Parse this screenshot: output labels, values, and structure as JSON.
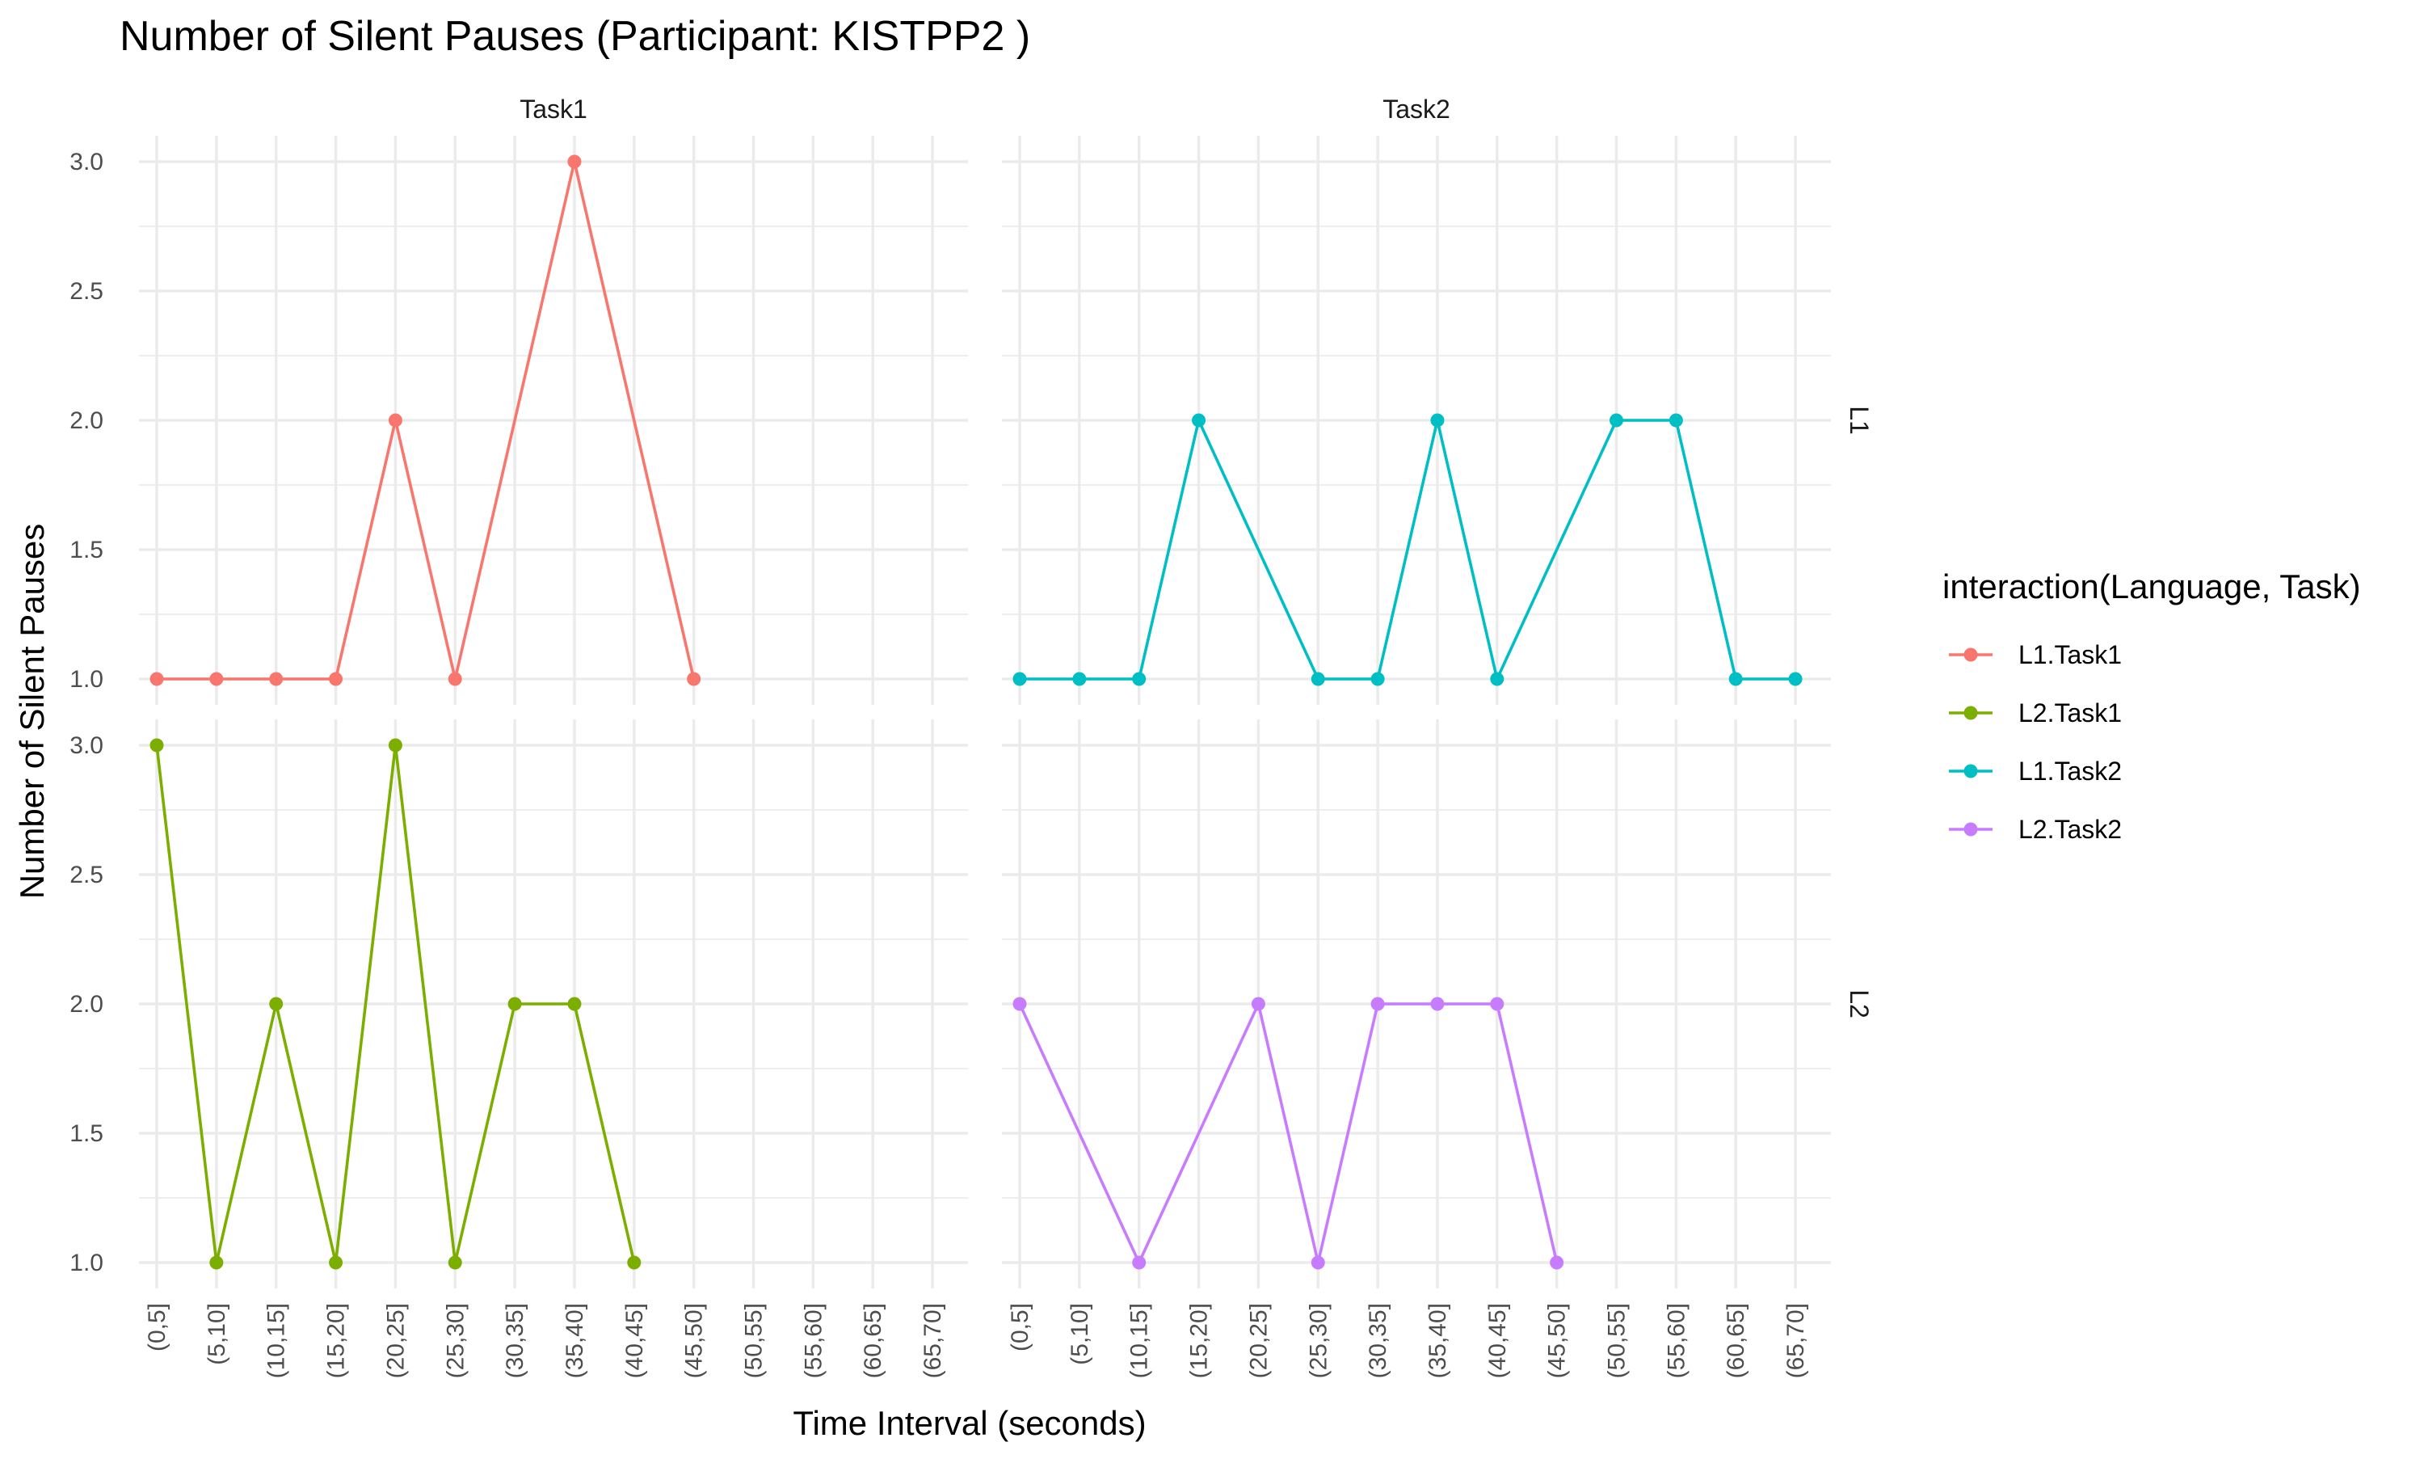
{
  "chart_data": {
    "type": "line",
    "title": "Number of Silent Pauses (Participant: KISTPP2 )",
    "xlabel": "Time Interval (seconds)",
    "ylabel": "Number of Silent Pauses",
    "categories": [
      "(0,5]",
      "(5,10]",
      "(10,15]",
      "(15,20]",
      "(20,25]",
      "(25,30]",
      "(30,35]",
      "(35,40]",
      "(40,45]",
      "(45,50]",
      "(50,55]",
      "(55,60]",
      "(60,65]",
      "(65,70]"
    ],
    "yticks": [
      "1.0",
      "1.5",
      "2.0",
      "2.5",
      "3.0"
    ],
    "ylim": [
      1.0,
      3.0
    ],
    "column_facets": [
      "Task1",
      "Task2"
    ],
    "row_facets": [
      "L1",
      "L2"
    ],
    "grid": true,
    "legend_position": "right",
    "legend_title": "interaction(Language, Task)",
    "series": [
      {
        "name": "L1.Task1",
        "color": "#F8766D",
        "row": 0,
        "col": 0,
        "values": [
          1,
          1,
          1,
          1,
          2,
          1,
          null,
          3,
          null,
          1,
          null,
          null,
          null,
          null
        ]
      },
      {
        "name": "L2.Task1",
        "color": "#7CAE00",
        "row": 1,
        "col": 0,
        "values": [
          3,
          1,
          2,
          1,
          3,
          1,
          2,
          2,
          1,
          null,
          null,
          null,
          null,
          null
        ]
      },
      {
        "name": "L1.Task2",
        "color": "#00BFC4",
        "row": 0,
        "col": 1,
        "values": [
          1,
          1,
          1,
          2,
          null,
          1,
          1,
          2,
          1,
          null,
          2,
          2,
          1,
          1
        ]
      },
      {
        "name": "L2.Task2",
        "color": "#C77CFF",
        "row": 1,
        "col": 1,
        "values": [
          2,
          null,
          1,
          null,
          2,
          1,
          2,
          2,
          2,
          1,
          null,
          null,
          null,
          null
        ]
      }
    ]
  }
}
